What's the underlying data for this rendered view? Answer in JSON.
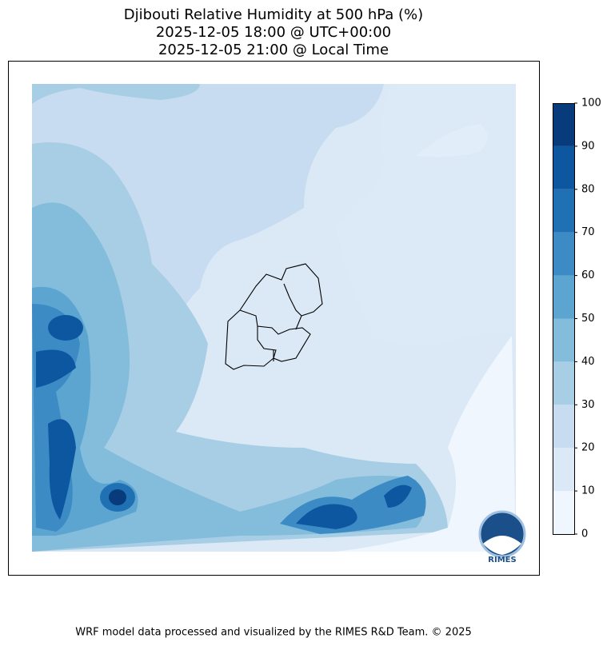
{
  "title": [
    "Djibouti Relative Humidity at 500 hPa (%)",
    "2025-12-05 18:00 @ UTC+00:00",
    "2025-12-05 21:00 @ Local Time"
  ],
  "colorbar": {
    "lim": [
      0,
      100
    ],
    "ticks": [
      0,
      10,
      20,
      30,
      40,
      50,
      60,
      70,
      80,
      90,
      100
    ],
    "colors": [
      "#eff6fd",
      "#dbe9f6",
      "#c7dcf0",
      "#a7cee4",
      "#84bcdb",
      "#5da5d1",
      "#3d8bc4",
      "#2070b4",
      "#0d57a1",
      "#083b7b"
    ]
  },
  "logo": "RIMES",
  "footer": "WRF model data processed and visualized by the RIMES R&D Team. © 2025"
}
